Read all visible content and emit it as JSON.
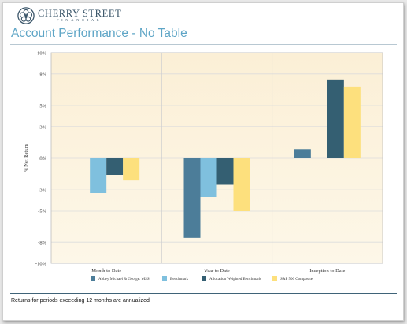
{
  "brand": {
    "name": "CHERRY STREET",
    "sub": "FINANCIAL",
    "mark_color": "#3a5569"
  },
  "page_title": "Account Performance - No Table",
  "footnote": "Returns for periods exceeding 12 months are annualized",
  "chart_data": {
    "type": "bar",
    "title": "",
    "xlabel": "",
    "ylabel": "% Net Return",
    "ylim": [
      -10,
      10
    ],
    "yticks": [
      -10,
      -8,
      -5,
      -3,
      0,
      3,
      5,
      8,
      10
    ],
    "ytick_labels": [
      "-10%",
      "-8%",
      "-5%",
      "-3%",
      "0%",
      "3%",
      "5%",
      "8%",
      "10%"
    ],
    "categories": [
      "Month to Date",
      "Year to Date",
      "Inception to Date"
    ],
    "series": [
      {
        "name": "Abbey Michael & George: MSS",
        "color": "#4c7d99",
        "values": [
          0.0,
          -7.6,
          0.8
        ]
      },
      {
        "name": "Benchmark",
        "color": "#7fc0de",
        "values": [
          -3.3,
          -3.7,
          0.0
        ]
      },
      {
        "name": "Allocation Weighted Benchmark",
        "color": "#345f72",
        "values": [
          -1.6,
          -2.5,
          7.4
        ]
      },
      {
        "name": "S&P 500 Composite",
        "color": "#fde07d",
        "values": [
          -2.1,
          -5.0,
          6.8
        ]
      }
    ],
    "grid": true,
    "legend_position": "bottom",
    "plot_background": "#fdf7e8"
  }
}
